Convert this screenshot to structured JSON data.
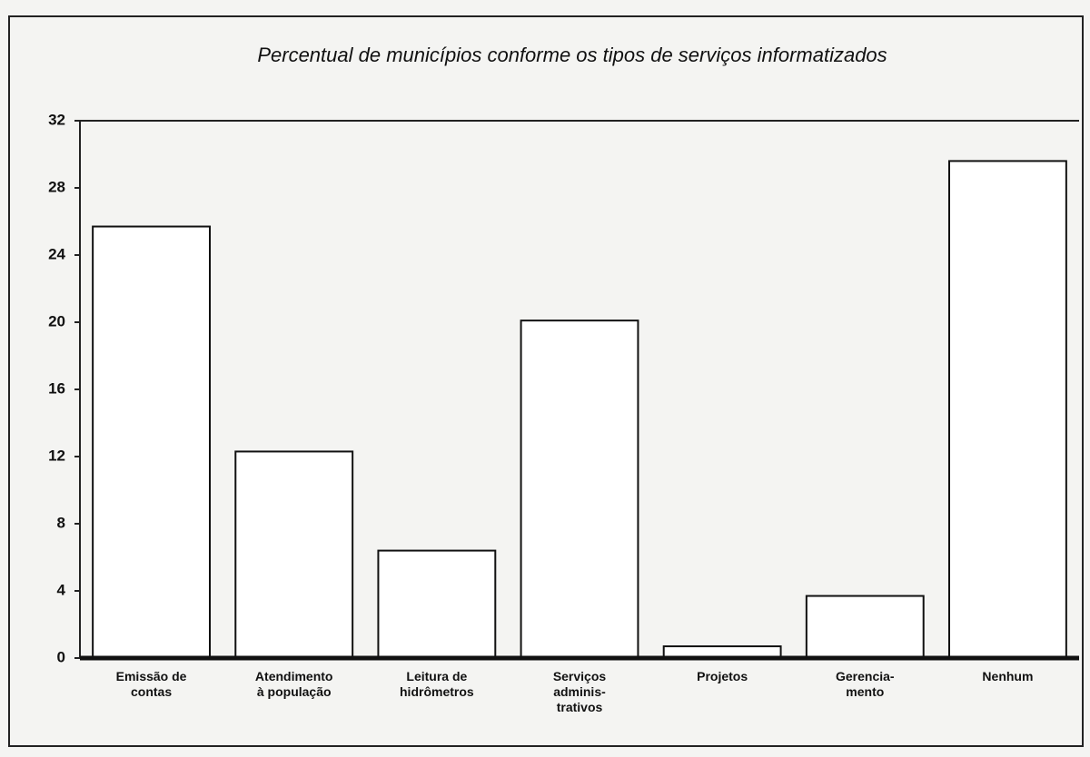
{
  "chart_data": {
    "type": "bar",
    "title": "Percentual de municípios conforme os tipos de serviços informatizados",
    "categories": [
      "Emissão de\ncontas",
      "Atendimento\nà população",
      "Leitura de\nhidrômetros",
      "Serviços\nadminis-\ntrativos",
      "Projetos",
      "Gerencia-\nmento",
      "Nenhum"
    ],
    "values": [
      25.7,
      12.3,
      6.4,
      20.1,
      0.7,
      3.7,
      29.6
    ],
    "color": "#ffffff",
    "ylim": [
      0,
      32
    ],
    "yticks": [
      0,
      4,
      8,
      12,
      16,
      20,
      24,
      28,
      32
    ],
    "grid": false
  }
}
